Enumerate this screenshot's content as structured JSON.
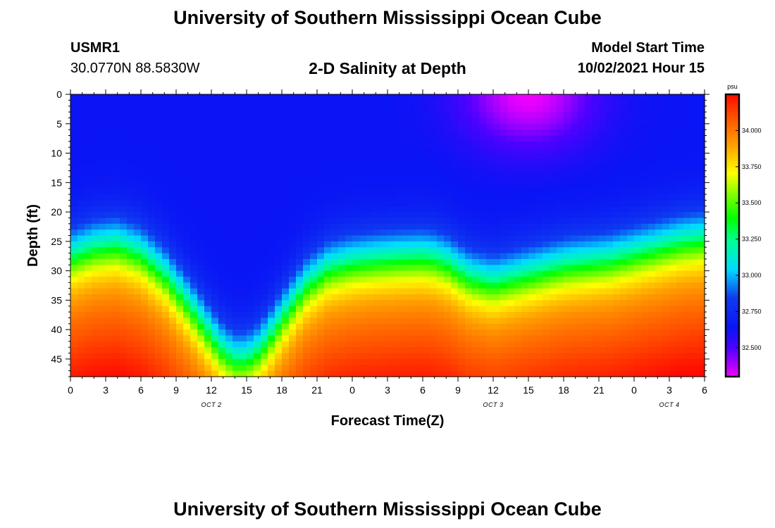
{
  "header": {
    "title": "University of Southern Mississippi Ocean Cube",
    "station": "USMR1",
    "coords": "30.0770N  88.5830W",
    "subtitle": "2-D Salinity at Depth",
    "model_start_label": "Model Start Time",
    "model_start_value": "10/02/2021 Hour 15"
  },
  "footer": {
    "title": "University of Southern Mississippi Ocean Cube"
  },
  "chart_data": {
    "type": "heatmap",
    "title": "2-D Salinity at Depth",
    "xlabel": "Forecast Time(Z)",
    "ylabel": "Depth (ft)",
    "x_ticks": [
      "0",
      "3",
      "6",
      "9",
      "12",
      "15",
      "18",
      "21",
      "0",
      "3",
      "6",
      "9",
      "12",
      "15",
      "18",
      "21",
      "0",
      "3",
      "6"
    ],
    "x_range_hours": [
      0,
      54
    ],
    "date_labels": [
      {
        "label": "OCT 2",
        "hour": 12
      },
      {
        "label": "OCT 3",
        "hour": 36
      },
      {
        "label": "OCT 4",
        "hour": 51
      }
    ],
    "y_ticks": [
      0,
      5,
      10,
      15,
      20,
      25,
      30,
      35,
      40,
      45
    ],
    "ylim": [
      0,
      48
    ],
    "y_inverted": true,
    "colorbar": {
      "unit": "psu",
      "min": 32.3,
      "max": 34.25,
      "labels": [
        "34.000",
        "33.750",
        "33.500",
        "33.250",
        "33.000",
        "32.750",
        "32.500"
      ]
    },
    "halocline_depth_ft": {
      "hours": [
        0,
        2,
        4,
        6,
        8,
        10,
        12,
        13,
        14,
        15,
        16,
        17,
        18,
        20,
        22,
        24,
        26,
        28,
        30,
        31,
        32,
        34,
        36,
        38,
        40,
        42,
        44,
        46,
        48,
        50,
        52,
        54
      ],
      "depth": [
        27,
        25.5,
        25,
        26.5,
        30,
        35,
        40.5,
        43,
        44.5,
        44.5,
        43,
        40.5,
        37.5,
        32,
        29,
        28,
        27.5,
        27.2,
        27,
        27.3,
        28,
        30.5,
        31.5,
        30.5,
        29.5,
        28.5,
        28,
        27.5,
        26.5,
        25.5,
        24.5,
        24
      ]
    },
    "surface_minimum": {
      "hour": 39,
      "depth_ft": 0,
      "value": 32.3
    }
  }
}
